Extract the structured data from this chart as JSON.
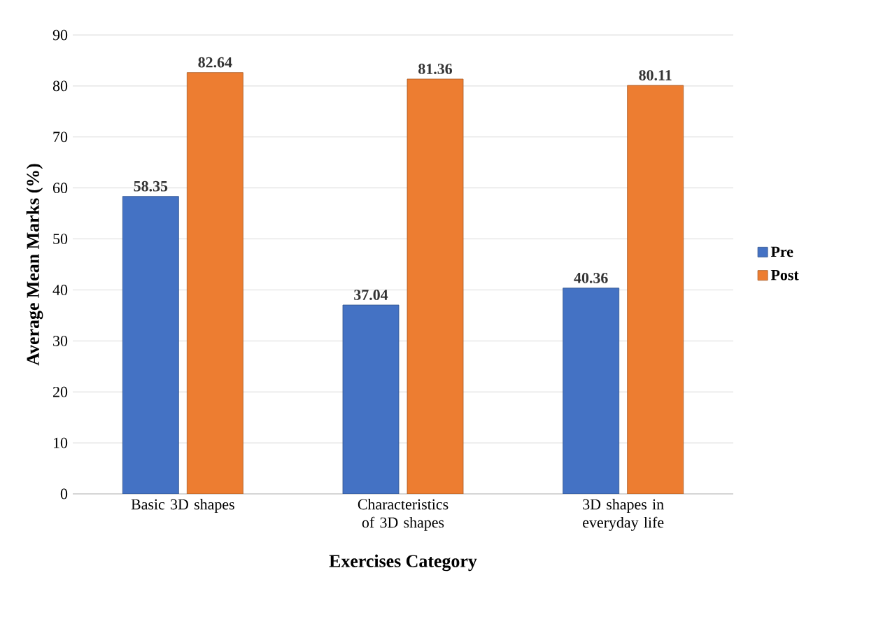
{
  "chart_data": {
    "type": "bar",
    "xlabel": "Exercises Category",
    "ylabel": "Average Mean Marks (%)",
    "categories": [
      "Basic 3D shapes",
      "Characteristics of 3D shapes",
      "3D shapes in everyday life"
    ],
    "series": [
      {
        "name": "Pre",
        "color": "#4472c4",
        "values": [
          58.35,
          37.04,
          40.36
        ]
      },
      {
        "name": "Post",
        "color": "#ed7d31",
        "values": [
          82.64,
          81.36,
          80.11
        ]
      }
    ],
    "ylim": [
      0,
      90
    ],
    "yticks": [
      0,
      10,
      20,
      30,
      40,
      50,
      60,
      70,
      80,
      90
    ],
    "grid": "y",
    "legend": "right",
    "data_labels": true
  }
}
